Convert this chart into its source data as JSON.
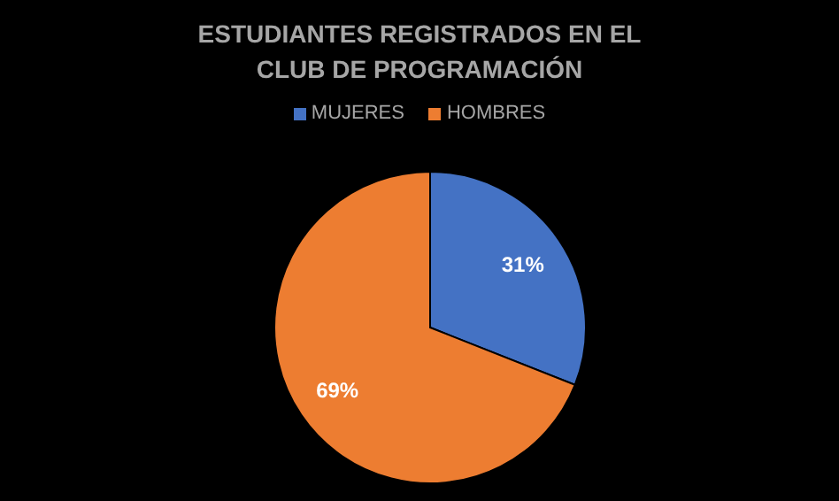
{
  "chart_data": {
    "type": "pie",
    "title": "ESTUDIANTES REGISTRADOS EN EL CLUB DE PROGRAMACIÓN",
    "categories": [
      "MUJERES",
      "HOMBRES"
    ],
    "values": [
      31,
      69
    ],
    "colors": [
      "#4472c4",
      "#ed7d31"
    ],
    "value_labels": [
      "31%",
      "69%"
    ],
    "legend": "top"
  }
}
